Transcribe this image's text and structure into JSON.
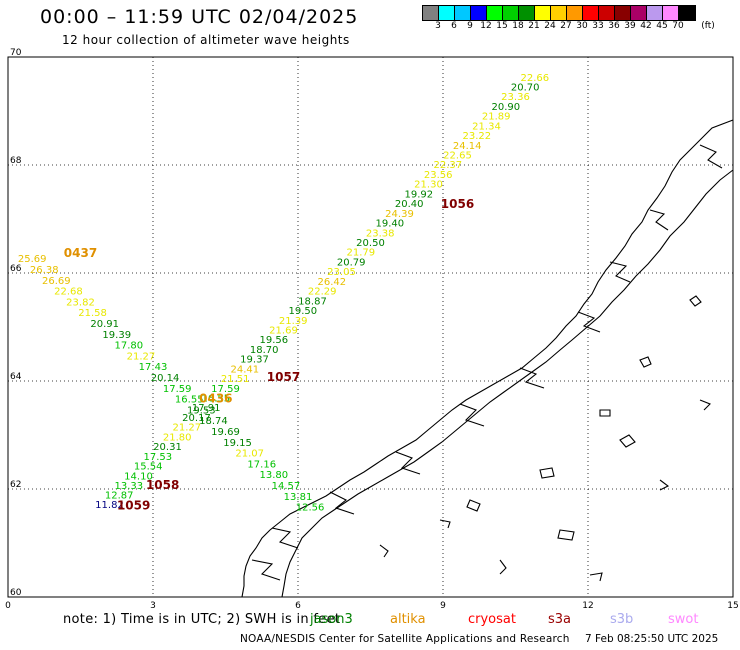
{
  "header": {
    "title": "00:00 – 11:59 UTC 02/04/2025",
    "subtitle": "12 hour collection of altimeter wave heights"
  },
  "colorbar": {
    "unit": "(ft)",
    "colors": [
      "#808080",
      "#00ffff",
      "#00c8ff",
      "#0000ff",
      "#00ff00",
      "#00d000",
      "#009000",
      "#ffff00",
      "#ffd000",
      "#ff9900",
      "#ff0000",
      "#cc0000",
      "#880000",
      "#aa0066",
      "#bb99ee",
      "#ff88ff",
      "#000000"
    ],
    "labels": [
      "3",
      "6",
      "9",
      "12",
      "15",
      "18",
      "21",
      "24",
      "27",
      "30",
      "33",
      "36",
      "39",
      "42",
      "45",
      "70"
    ]
  },
  "map": {
    "lat_range": [
      60,
      70
    ],
    "lon_range": [
      0,
      15
    ],
    "lat_ticks": [
      "60",
      "62",
      "64",
      "66",
      "68",
      "70"
    ],
    "lon_ticks": [
      "0",
      "3",
      "6",
      "9",
      "12",
      "15"
    ],
    "grid": "dotted",
    "tracks": [
      {
        "id": "1056",
        "color": "#800000",
        "points": [
          {
            "lat": 61.65,
            "lon": 2.1,
            "label": "11.82",
            "color": "#000080"
          },
          {
            "lat": 61.82,
            "lon": 2.3,
            "label": "12.87",
            "color": "#00c000"
          },
          {
            "lat": 62.0,
            "lon": 2.5,
            "label": "13.33",
            "color": "#00c000"
          },
          {
            "lat": 62.18,
            "lon": 2.7,
            "label": "14.10",
            "color": "#00c000"
          },
          {
            "lat": 62.36,
            "lon": 2.9,
            "label": "15.54",
            "color": "#00c000"
          },
          {
            "lat": 62.54,
            "lon": 3.1,
            "label": "17.53",
            "color": "#00c000"
          },
          {
            "lat": 62.72,
            "lon": 3.3,
            "label": "20.31",
            "color": "#008000"
          },
          {
            "lat": 62.9,
            "lon": 3.5,
            "label": "21.80",
            "color": "#e8e800"
          },
          {
            "lat": 63.08,
            "lon": 3.7,
            "label": "21.27",
            "color": "#e8e800"
          },
          {
            "lat": 63.26,
            "lon": 3.9,
            "label": "20.17",
            "color": "#008000"
          },
          {
            "lat": 63.44,
            "lon": 4.1,
            "label": "17.91",
            "color": "#008000"
          },
          {
            "lat": 63.62,
            "lon": 4.3,
            "label": "16.55",
            "color": "#00c000"
          },
          {
            "lat": 63.8,
            "lon": 4.5,
            "label": "17.59",
            "color": "#00c000"
          },
          {
            "lat": 63.98,
            "lon": 4.7,
            "label": "21.51",
            "color": "#e8e800"
          },
          {
            "lat": 64.16,
            "lon": 4.9,
            "label": "24.41",
            "color": "#e8c000"
          },
          {
            "lat": 64.34,
            "lon": 5.1,
            "label": "19.37",
            "color": "#008000"
          },
          {
            "lat": 64.52,
            "lon": 5.3,
            "label": "18.70",
            "color": "#008000"
          },
          {
            "lat": 64.7,
            "lon": 5.5,
            "label": "19.56",
            "color": "#008000"
          },
          {
            "lat": 64.88,
            "lon": 5.7,
            "label": "21.69",
            "color": "#e8e800"
          },
          {
            "lat": 65.06,
            "lon": 5.9,
            "label": "21.39",
            "color": "#e8e800"
          },
          {
            "lat": 65.24,
            "lon": 6.1,
            "label": "19.50",
            "color": "#008000"
          },
          {
            "lat": 65.42,
            "lon": 6.3,
            "label": "18.87",
            "color": "#008000"
          },
          {
            "lat": 65.6,
            "lon": 6.5,
            "label": "22.29",
            "color": "#e8e800"
          },
          {
            "lat": 65.78,
            "lon": 6.7,
            "label": "26.42",
            "color": "#e8c000"
          },
          {
            "lat": 65.96,
            "lon": 6.9,
            "label": "23.05",
            "color": "#e8e800"
          },
          {
            "lat": 66.14,
            "lon": 7.1,
            "label": "20.79",
            "color": "#008000"
          },
          {
            "lat": 66.32,
            "lon": 7.3,
            "label": "21.79",
            "color": "#e8e800"
          },
          {
            "lat": 66.5,
            "lon": 7.5,
            "label": "20.50",
            "color": "#008000"
          },
          {
            "lat": 66.68,
            "lon": 7.7,
            "label": "23.38",
            "color": "#e8e800"
          },
          {
            "lat": 66.86,
            "lon": 7.9,
            "label": "19.40",
            "color": "#008000"
          },
          {
            "lat": 67.04,
            "lon": 8.1,
            "label": "24.39",
            "color": "#e8c000"
          },
          {
            "lat": 67.22,
            "lon": 8.3,
            "label": "20.40",
            "color": "#008000"
          },
          {
            "lat": 67.4,
            "lon": 8.5,
            "label": "19.92",
            "color": "#008000"
          },
          {
            "lat": 67.58,
            "lon": 8.7,
            "label": "21.30",
            "color": "#e8e800"
          },
          {
            "lat": 67.76,
            "lon": 8.9,
            "label": "23.56",
            "color": "#e8e800"
          },
          {
            "lat": 67.94,
            "lon": 9.1,
            "label": "22.37",
            "color": "#e8e800"
          },
          {
            "lat": 68.12,
            "lon": 9.3,
            "label": "22.65",
            "color": "#e8e800"
          },
          {
            "lat": 68.3,
            "lon": 9.5,
            "label": "24.14",
            "color": "#e8c000"
          },
          {
            "lat": 68.48,
            "lon": 9.7,
            "label": "23.22",
            "color": "#e8e800"
          },
          {
            "lat": 68.66,
            "lon": 9.9,
            "label": "21.34",
            "color": "#e8e800"
          },
          {
            "lat": 68.84,
            "lon": 10.1,
            "label": "21.89",
            "color": "#e8e800"
          },
          {
            "lat": 69.02,
            "lon": 10.3,
            "label": "20.90",
            "color": "#008000"
          },
          {
            "lat": 69.2,
            "lon": 10.5,
            "label": "23.36",
            "color": "#e8e800"
          },
          {
            "lat": 69.38,
            "lon": 10.7,
            "label": "20.70",
            "color": "#008000"
          },
          {
            "lat": 69.56,
            "lon": 10.9,
            "label": "22.66",
            "color": "#e8e800"
          }
        ],
        "id_labels": [
          {
            "lat": 61.62,
            "lon": 2.6,
            "text": "1059"
          },
          {
            "lat": 62.0,
            "lon": 3.2,
            "text": "1058"
          },
          {
            "lat": 64.0,
            "lon": 5.7,
            "text": "1057"
          },
          {
            "lat": 67.2,
            "lon": 9.3,
            "text": "1056"
          }
        ]
      },
      {
        "id": "0437",
        "color": "#e09000",
        "points": [
          {
            "lat": 66.2,
            "lon": 0.5,
            "label": "25.69",
            "color": "#e8c000"
          },
          {
            "lat": 66.0,
            "lon": 0.75,
            "label": "26.38",
            "color": "#e8c000"
          },
          {
            "lat": 65.8,
            "lon": 1.0,
            "label": "26.69",
            "color": "#e8c000"
          },
          {
            "lat": 65.6,
            "lon": 1.25,
            "label": "22.68",
            "color": "#e8e800"
          },
          {
            "lat": 65.4,
            "lon": 1.5,
            "label": "23.82",
            "color": "#e8e800"
          },
          {
            "lat": 65.2,
            "lon": 1.75,
            "label": "21.58",
            "color": "#e8e800"
          },
          {
            "lat": 65.0,
            "lon": 2.0,
            "label": "20.91",
            "color": "#008000"
          },
          {
            "lat": 64.8,
            "lon": 2.25,
            "label": "19.39",
            "color": "#008000"
          },
          {
            "lat": 64.6,
            "lon": 2.5,
            "label": "17.80",
            "color": "#00c000"
          },
          {
            "lat": 64.4,
            "lon": 2.75,
            "label": "21.27",
            "color": "#e8e800"
          },
          {
            "lat": 64.2,
            "lon": 3.0,
            "label": "17.43",
            "color": "#00c000"
          },
          {
            "lat": 64.0,
            "lon": 3.25,
            "label": "20.14",
            "color": "#008000"
          },
          {
            "lat": 63.8,
            "lon": 3.5,
            "label": "17.59",
            "color": "#00c000"
          },
          {
            "lat": 63.6,
            "lon": 3.75,
            "label": "16.55",
            "color": "#00c000"
          },
          {
            "lat": 63.4,
            "lon": 4.0,
            "label": "19.53",
            "color": "#008000"
          },
          {
            "lat": 63.2,
            "lon": 4.25,
            "label": "18.74",
            "color": "#008000"
          },
          {
            "lat": 63.0,
            "lon": 4.5,
            "label": "19.69",
            "color": "#008000"
          },
          {
            "lat": 62.8,
            "lon": 4.75,
            "label": "19.15",
            "color": "#008000"
          },
          {
            "lat": 62.6,
            "lon": 5.0,
            "label": "21.07",
            "color": "#e8e800"
          },
          {
            "lat": 62.4,
            "lon": 5.25,
            "label": "17.16",
            "color": "#00c000"
          },
          {
            "lat": 62.2,
            "lon": 5.5,
            "label": "13.80",
            "color": "#00c000"
          },
          {
            "lat": 62.0,
            "lon": 5.75,
            "label": "14.57",
            "color": "#00c000"
          },
          {
            "lat": 61.8,
            "lon": 6.0,
            "label": "13.81",
            "color": "#00c000"
          },
          {
            "lat": 61.6,
            "lon": 6.25,
            "label": "12.56",
            "color": "#00c000"
          }
        ],
        "id_labels": [
          {
            "lat": 66.3,
            "lon": 1.5,
            "text": "0437"
          },
          {
            "lat": 63.6,
            "lon": 4.3,
            "text": "0436"
          }
        ]
      }
    ]
  },
  "legend": {
    "note": "note: 1) Time is in UTC; 2) SWH is in feet",
    "satellites": [
      {
        "name": "jason3",
        "color": "#008000"
      },
      {
        "name": "altika",
        "color": "#e09000"
      },
      {
        "name": "cryosat",
        "color": "#ff0000"
      },
      {
        "name": "s3a",
        "color": "#990000"
      },
      {
        "name": "s3b",
        "color": "#aaaaee"
      },
      {
        "name": "swot",
        "color": "#ff88ff"
      }
    ]
  },
  "footer": {
    "credit": "NOAA/NESDIS Center for Satellite Applications and Research",
    "timestamp": "7 Feb 08:25:50 UTC 2025"
  }
}
